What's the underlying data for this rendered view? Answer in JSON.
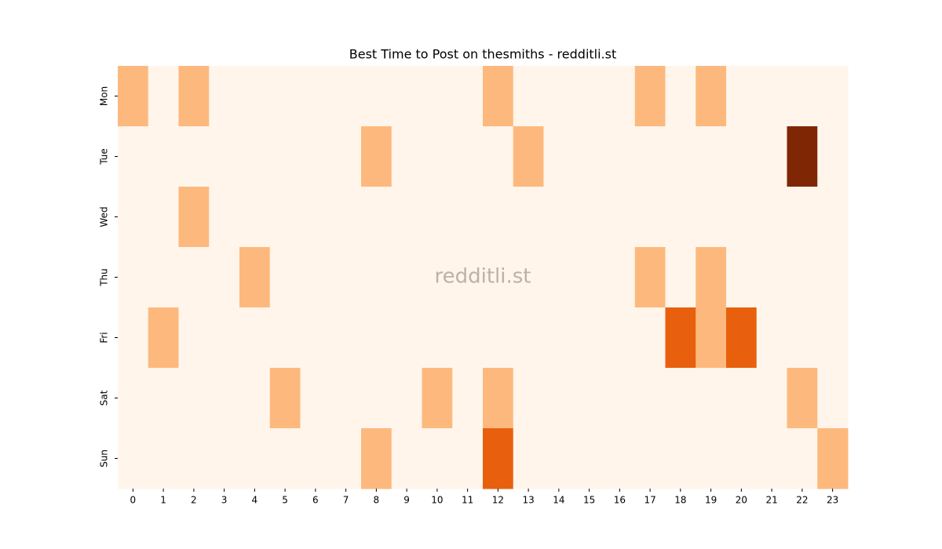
{
  "chart_data": {
    "type": "heatmap",
    "title": "Best Time to Post on thesmiths - redditli.st",
    "annotation": "redditli.st",
    "x": [
      0,
      1,
      2,
      3,
      4,
      5,
      6,
      7,
      8,
      9,
      10,
      11,
      12,
      13,
      14,
      15,
      16,
      17,
      18,
      19,
      20,
      21,
      22,
      23
    ],
    "y": [
      "Mon",
      "Tue",
      "Wed",
      "Thu",
      "Fri",
      "Sat",
      "Sun"
    ],
    "values": [
      [
        1,
        0,
        1,
        0,
        0,
        0,
        0,
        0,
        0,
        0,
        0,
        0,
        1,
        0,
        0,
        0,
        0,
        1,
        0,
        1,
        0,
        0,
        0,
        0
      ],
      [
        0,
        0,
        0,
        0,
        0,
        0,
        0,
        0,
        1,
        0,
        0,
        0,
        0,
        1,
        0,
        0,
        0,
        0,
        0,
        0,
        0,
        0,
        3,
        0
      ],
      [
        0,
        0,
        1,
        0,
        0,
        0,
        0,
        0,
        0,
        0,
        0,
        0,
        0,
        0,
        0,
        0,
        0,
        0,
        0,
        0,
        0,
        0,
        0,
        0
      ],
      [
        0,
        0,
        0,
        0,
        1,
        0,
        0,
        0,
        0,
        0,
        0,
        0,
        0,
        0,
        0,
        0,
        0,
        1,
        0,
        1,
        0,
        0,
        0,
        0
      ],
      [
        0,
        1,
        0,
        0,
        0,
        0,
        0,
        0,
        0,
        0,
        0,
        0,
        0,
        0,
        0,
        0,
        0,
        0,
        2,
        1,
        2,
        0,
        0,
        0
      ],
      [
        0,
        0,
        0,
        0,
        0,
        1,
        0,
        0,
        0,
        0,
        1,
        0,
        1,
        0,
        0,
        0,
        0,
        0,
        0,
        0,
        0,
        0,
        1,
        0
      ],
      [
        0,
        0,
        0,
        0,
        0,
        0,
        0,
        0,
        1,
        0,
        0,
        0,
        2,
        0,
        0,
        0,
        0,
        0,
        0,
        0,
        0,
        0,
        0,
        1
      ]
    ],
    "zlim": [
      0,
      3
    ],
    "colors": [
      "#fff5eb",
      "#fdb97d",
      "#e8600d",
      "#7f2704"
    ]
  }
}
